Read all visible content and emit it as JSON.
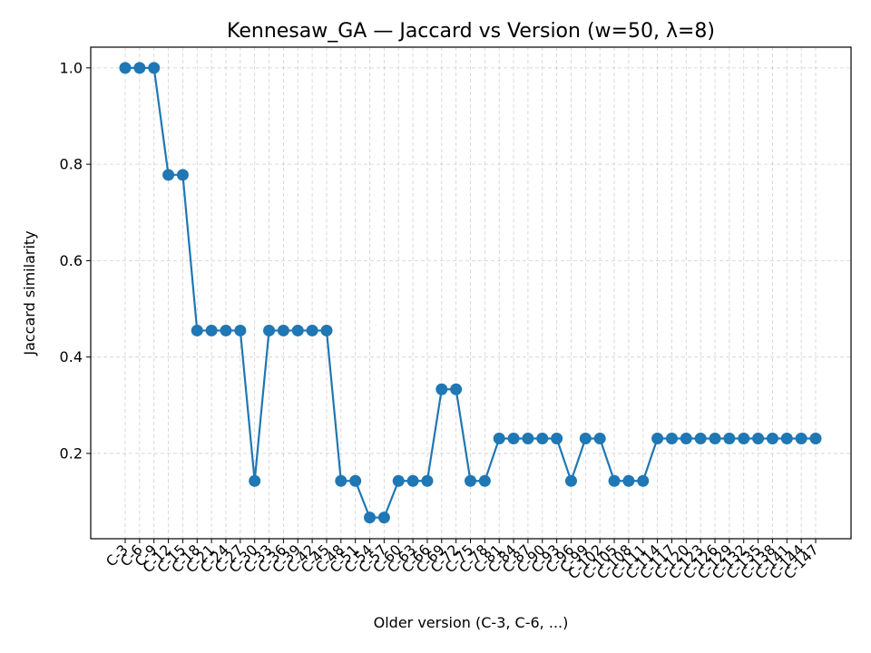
{
  "chart_data": {
    "type": "line",
    "title": "Kennesaw_GA — Jaccard vs Version (w=50, λ=8)",
    "xlabel": "Older version (C-3, C-6, ...)",
    "ylabel": "Jaccard similarity",
    "ylim": [
      0.023,
      1.043
    ],
    "yticks": [
      "0.2",
      "0.4",
      "0.6",
      "0.8",
      "1.0"
    ],
    "grid": true,
    "color": "#1f77b4",
    "categories": [
      "C-3",
      "C-6",
      "C-9",
      "C-12",
      "C-15",
      "C-18",
      "C-21",
      "C-24",
      "C-27",
      "C-30",
      "C-33",
      "C-36",
      "C-39",
      "C-42",
      "C-45",
      "C-48",
      "C-51",
      "C-54",
      "C-57",
      "C-60",
      "C-63",
      "C-66",
      "C-69",
      "C-72",
      "C-75",
      "C-78",
      "C-81",
      "C-84",
      "C-87",
      "C-90",
      "C-93",
      "C-96",
      "C-99",
      "C-102",
      "C-105",
      "C-108",
      "C-111",
      "C-114",
      "C-117",
      "C-120",
      "C-123",
      "C-126",
      "C-129",
      "C-132",
      "C-135",
      "C-138",
      "C-141",
      "C-144",
      "C-147"
    ],
    "values": [
      1.0,
      1.0,
      1.0,
      0.778,
      0.778,
      0.455,
      0.455,
      0.455,
      0.455,
      0.143,
      0.455,
      0.455,
      0.455,
      0.455,
      0.455,
      0.143,
      0.143,
      0.067,
      0.067,
      0.143,
      0.143,
      0.143,
      0.333,
      0.333,
      0.143,
      0.143,
      0.231,
      0.231,
      0.231,
      0.231,
      0.231,
      0.143,
      0.231,
      0.231,
      0.143,
      0.143,
      0.143,
      0.231,
      0.231,
      0.231,
      0.231,
      0.231,
      0.231,
      0.231,
      0.231,
      0.231,
      0.231,
      0.231,
      0.231
    ]
  }
}
